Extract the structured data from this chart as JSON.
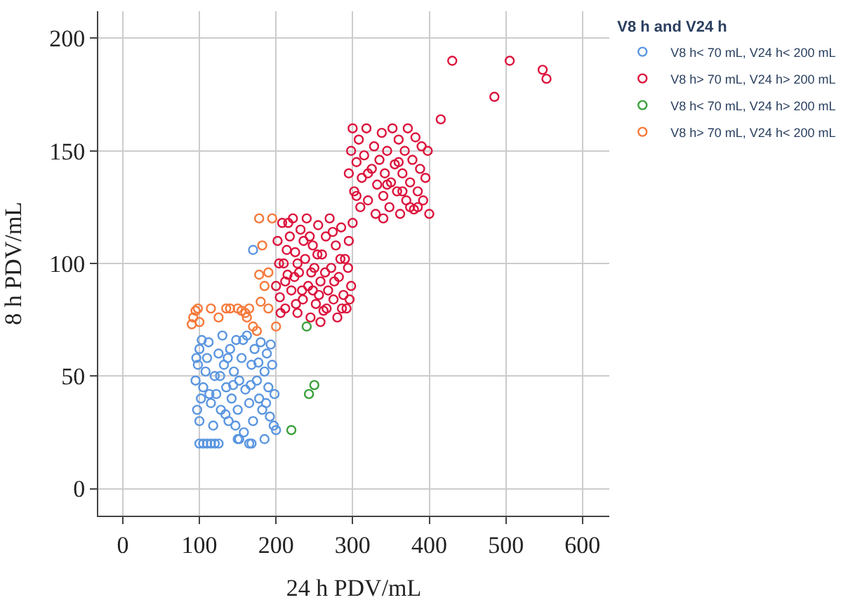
{
  "chart_data": {
    "type": "scatter",
    "xlabel": "24 h PDV/mL",
    "ylabel": "8 h PDV/mL",
    "legend_title": "V8 h and V24 h",
    "legend": "top right",
    "grid": true,
    "marker": "circle",
    "xlim": [
      -32,
      635
    ],
    "ylim": [
      -12,
      212
    ],
    "xticks": [
      0,
      100,
      200,
      300,
      400,
      500,
      600
    ],
    "yticks": [
      0,
      50,
      100,
      150,
      200
    ],
    "series": [
      {
        "name": "V8 h< 70 mL, V24 h< 200 mL",
        "color": "#5b96e0",
        "x": [
          95,
          98,
          100,
          102,
          97,
          100,
          105,
          108,
          110,
          112,
          115,
          118,
          120,
          122,
          125,
          128,
          130,
          132,
          135,
          138,
          140,
          142,
          145,
          148,
          150,
          152,
          155,
          158,
          160,
          162,
          165,
          168,
          170,
          172,
          175,
          178,
          180,
          182,
          185,
          188,
          190,
          192,
          195,
          197,
          198,
          200,
          100,
          105,
          110,
          115,
          120,
          125,
          150,
          152,
          165,
          168,
          103,
          113,
          127,
          137,
          147,
          157,
          167,
          177,
          187,
          193,
          134,
          144,
          96,
          185,
          170
        ],
        "values": [
          48,
          55,
          62,
          40,
          35,
          30,
          45,
          52,
          58,
          65,
          38,
          28,
          50,
          42,
          60,
          35,
          68,
          55,
          45,
          30,
          62,
          40,
          52,
          66,
          35,
          48,
          58,
          25,
          44,
          68,
          38,
          55,
          30,
          62,
          48,
          40,
          65,
          35,
          52,
          60,
          45,
          32,
          55,
          28,
          42,
          26,
          20,
          20,
          20,
          20,
          20,
          20,
          22,
          22,
          20,
          20,
          66,
          42,
          50,
          58,
          28,
          66,
          46,
          56,
          38,
          64,
          33,
          46,
          58,
          22,
          106
        ]
      },
      {
        "name": "V8 h> 70 mL, V24 h> 200 mL",
        "color": "#dc143c",
        "x": [
          200,
          202,
          205,
          208,
          210,
          212,
          215,
          218,
          220,
          222,
          225,
          228,
          230,
          232,
          235,
          238,
          240,
          242,
          245,
          248,
          250,
          252,
          255,
          258,
          260,
          262,
          265,
          268,
          270,
          272,
          275,
          278,
          280,
          282,
          285,
          288,
          290,
          292,
          295,
          298,
          300,
          204,
          214,
          224,
          234,
          244,
          254,
          264,
          274,
          284,
          294,
          206,
          226,
          246,
          266,
          286,
          216,
          236,
          256,
          276,
          296,
          258,
          248,
          228,
          212,
          295,
          298,
          300,
          302,
          305,
          308,
          310,
          312,
          315,
          318,
          320,
          325,
          328,
          330,
          332,
          335,
          338,
          340,
          342,
          345,
          348,
          350,
          352,
          355,
          358,
          360,
          362,
          365,
          368,
          370,
          372,
          375,
          378,
          380,
          382,
          385,
          388,
          390,
          392,
          395,
          398,
          400,
          305,
          345,
          365,
          385,
          320,
          360,
          340,
          375,
          415,
          430,
          485,
          505,
          548,
          553
        ],
        "values": [
          90,
          110,
          85,
          118,
          100,
          80,
          95,
          112,
          88,
          120,
          105,
          78,
          96,
          115,
          84,
          102,
          120,
          90,
          76,
          108,
          98,
          82,
          117,
          92,
          104,
          79,
          112,
          88,
          120,
          98,
          84,
          108,
          76,
          94,
          116,
          86,
          102,
          80,
          110,
          90,
          118,
          100,
          106,
          94,
          88,
          112,
          104,
          96,
          114,
          102,
          98,
          78,
          82,
          96,
          80,
          80,
          118,
          110,
          86,
          92,
          84,
          74,
          88,
          100,
          92,
          140,
          150,
          160,
          132,
          145,
          155,
          125,
          138,
          148,
          160,
          128,
          142,
          152,
          122,
          135,
          146,
          158,
          130,
          140,
          150,
          125,
          136,
          160,
          144,
          132,
          155,
          122,
          140,
          150,
          128,
          160,
          136,
          146,
          124,
          156,
          132,
          142,
          152,
          128,
          138,
          150,
          122,
          130,
          135,
          132,
          125,
          140,
          145,
          120,
          125,
          164,
          190,
          174,
          190,
          186,
          182
        ]
      },
      {
        "name": "V8 h< 70 mL, V24 h> 200 mL",
        "color": "#3aa03a",
        "x": [
          240,
          243,
          250,
          220
        ],
        "values": [
          72,
          42,
          46,
          26
        ]
      },
      {
        "name": "V8 h> 70 mL, V24 h< 200 mL",
        "color": "#f5793a",
        "x": [
          90,
          92,
          95,
          98,
          100,
          115,
          125,
          135,
          140,
          150,
          155,
          160,
          165,
          162,
          170,
          175,
          180,
          178,
          185,
          190,
          182,
          178,
          195,
          190,
          200
        ],
        "values": [
          73,
          76,
          79,
          80,
          74,
          80,
          76,
          80,
          80,
          80,
          79,
          78,
          80,
          76,
          72,
          70,
          83,
          95,
          90,
          96,
          108,
          120,
          120,
          80,
          72
        ]
      }
    ]
  }
}
